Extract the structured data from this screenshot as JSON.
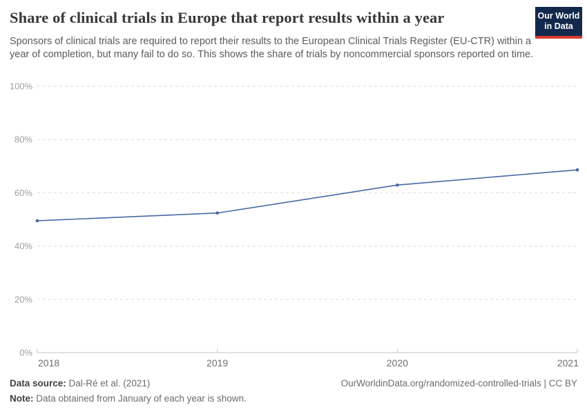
{
  "header": {
    "title": "Share of clinical trials in Europe that report results within a year",
    "subtitle": "Sponsors of clinical trials are required to report their results to the European Clinical Trials Register (EU-CTR) within a year of completion, but many fail to do so. This shows the share of trials by noncommercial sponsors reported on time.",
    "logo": {
      "line1": "Our World",
      "line2": "in Data",
      "bg_color": "#12294d",
      "accent_color": "#d93a2b"
    }
  },
  "chart_data": {
    "type": "line",
    "title": "Share of clinical trials in Europe that report results within a year",
    "x": [
      "2018",
      "2019",
      "2020",
      "2021"
    ],
    "values": [
      49.5,
      52.4,
      62.9,
      68.6
    ],
    "xlabel": "",
    "ylabel": "",
    "ylim": [
      0,
      100
    ],
    "yticks": [
      0,
      20,
      40,
      60,
      80,
      100
    ],
    "ytick_suffix": "%",
    "grid": "horizontal-dashed",
    "legend": "none",
    "line_color": "#4668a3",
    "marker": "dot"
  },
  "footer": {
    "source_label": "Data source:",
    "source_value": " Dal-Ré et al. (2021)",
    "note_label": "Note:",
    "note_value": " Data obtained from January of each year is shown.",
    "link": "OurWorldinData.org/randomized-controlled-trials | CC BY"
  }
}
